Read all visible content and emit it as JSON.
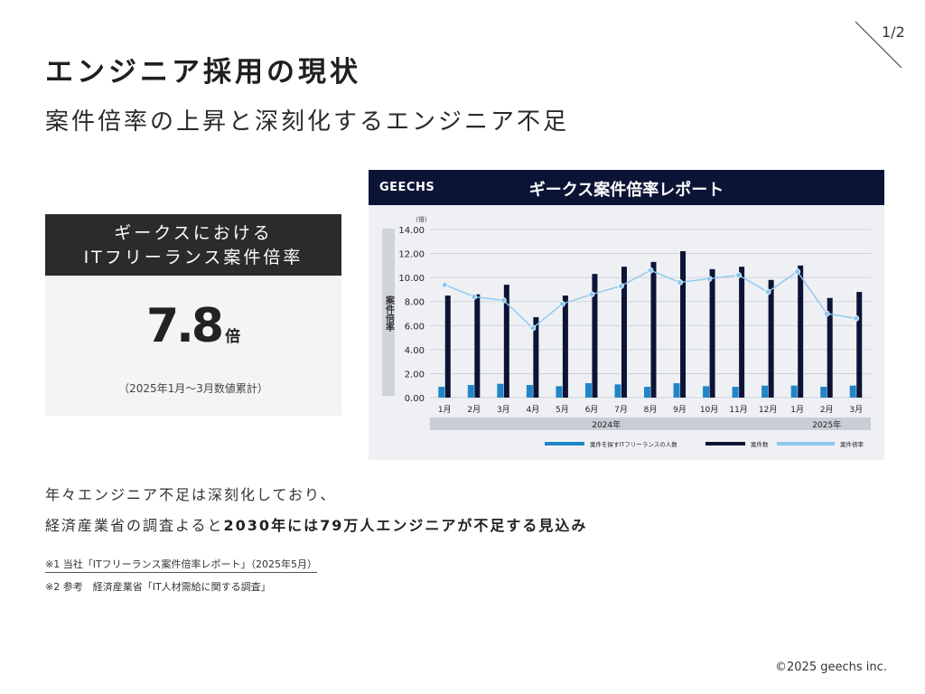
{
  "page_number": "1/2",
  "title": "エンジニア採用の現状",
  "subtitle": "案件倍率の上昇と深刻化するエンジニア不足",
  "stat_card": {
    "label_line1": "ギークスにおける",
    "label_line2": "ITフリーランス案件倍率",
    "value": "7.8",
    "unit": "倍",
    "note": "（2025年1月〜3月数値累計）"
  },
  "report": {
    "brand": "GEECHS",
    "title": "ギークス案件倍率レポート"
  },
  "chart_data": {
    "type": "bar",
    "unit_label": "（倍）",
    "ylabel": "案件倍率",
    "ylim": [
      0,
      14
    ],
    "yticks": [
      "0.00",
      "2.00",
      "4.00",
      "6.00",
      "8.00",
      "10.00",
      "12.00",
      "14.00"
    ],
    "categories": [
      "1月",
      "2月",
      "3月",
      "4月",
      "5月",
      "6月",
      "7月",
      "8月",
      "9月",
      "10月",
      "11月",
      "12月",
      "1月",
      "2月",
      "3月"
    ],
    "year_groups": [
      {
        "label": "2024年",
        "start": 0,
        "end": 11
      },
      {
        "label": "2025年",
        "start": 12,
        "end": 14
      }
    ],
    "series": [
      {
        "name": "案件を探すITフリーランスの人数",
        "type": "bar",
        "color": "#1f86c8",
        "values": [
          0.9,
          1.05,
          1.15,
          1.05,
          0.95,
          1.2,
          1.1,
          0.9,
          1.2,
          0.95,
          0.9,
          1.0,
          1.0,
          0.9,
          1.0
        ]
      },
      {
        "name": "案件数",
        "type": "bar",
        "color": "#0c1436",
        "values": [
          8.5,
          8.6,
          9.4,
          6.7,
          8.5,
          10.3,
          10.9,
          11.3,
          12.2,
          10.7,
          10.9,
          9.8,
          11.0,
          8.3,
          8.8
        ]
      },
      {
        "name": "案件倍率",
        "type": "line",
        "color": "#8cc8ee",
        "values": [
          9.4,
          8.4,
          8.1,
          5.8,
          7.8,
          8.6,
          9.3,
          10.6,
          9.6,
          9.9,
          10.2,
          8.8,
          10.5,
          7.0,
          6.6
        ]
      }
    ]
  },
  "body": {
    "line1": "年々エンジニア不足は深刻化しており、",
    "line2_prefix": "経済産業省の調査よると",
    "line2_strong": "2030年には79万人エンジニアが不足する見込み"
  },
  "notes": {
    "note1": "※1 当社「ITフリーランス案件倍率レポート」（2025年5月）",
    "note2": "※2 参考　経済産業省「IT人材需給に関する調査」"
  },
  "copyright": "©2025 geechs inc."
}
